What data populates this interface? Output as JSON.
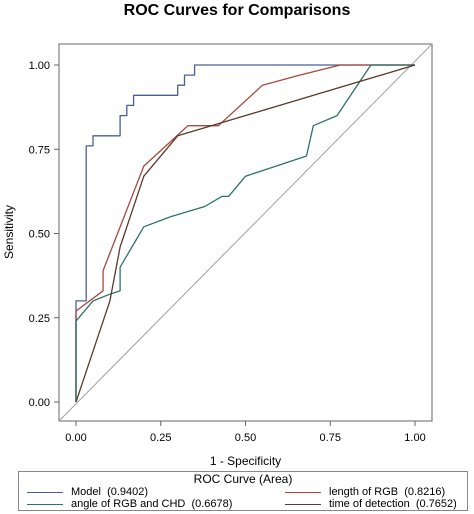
{
  "chart_data": {
    "type": "line",
    "title": "ROC Curves for Comparisons",
    "xlabel": "1 - Specificity",
    "ylabel": "Sensitivity",
    "xlim": [
      0,
      1
    ],
    "ylim": [
      0,
      1
    ],
    "xticks": [
      "0.00",
      "0.25",
      "0.50",
      "0.75",
      "1.00"
    ],
    "yticks": [
      "0.00",
      "0.25",
      "0.50",
      "0.75",
      "1.00"
    ],
    "grid": false,
    "legend_title": "ROC Curve (Area)",
    "legend_position": "bottom",
    "reference_line": {
      "x": [
        0,
        1
      ],
      "y": [
        0,
        1
      ],
      "color": "#a0a0a0"
    },
    "series": [
      {
        "name": "Model",
        "area_label": "(0.9402)",
        "color": "#4a5f9a",
        "x": [
          0,
          0,
          0.03,
          0.03,
          0.05,
          0.05,
          0.13,
          0.13,
          0.15,
          0.15,
          0.17,
          0.17,
          0.3,
          0.3,
          0.32,
          0.32,
          0.35,
          0.35,
          1.0
        ],
        "y": [
          0,
          0.3,
          0.3,
          0.76,
          0.76,
          0.79,
          0.79,
          0.85,
          0.85,
          0.88,
          0.88,
          0.91,
          0.91,
          0.94,
          0.94,
          0.97,
          0.97,
          1.0,
          1.0
        ]
      },
      {
        "name": "length of RGB",
        "area_label": "(0.8216)",
        "color": "#a8483c",
        "x": [
          0,
          0,
          0.08,
          0.08,
          0.2,
          0.33,
          0.42,
          0.55,
          0.66,
          0.78,
          1.0
        ],
        "y": [
          0,
          0.27,
          0.33,
          0.39,
          0.7,
          0.82,
          0.82,
          0.94,
          0.97,
          1.0,
          1.0
        ]
      },
      {
        "name": "angle of RGB and CHD",
        "area_label": "(0.6678)",
        "color": "#2f7268",
        "x": [
          0,
          0,
          0.05,
          0.1,
          0.13,
          0.13,
          0.2,
          0.28,
          0.38,
          0.43,
          0.45,
          0.5,
          0.68,
          0.7,
          0.77,
          0.87,
          1.0
        ],
        "y": [
          0,
          0.24,
          0.3,
          0.32,
          0.33,
          0.4,
          0.52,
          0.55,
          0.58,
          0.61,
          0.61,
          0.67,
          0.73,
          0.82,
          0.85,
          1.0,
          1.0
        ]
      },
      {
        "name": "time of detection",
        "area_label": "(0.7652)",
        "color": "#5a3a2a",
        "x": [
          0,
          0.1,
          0.13,
          0.2,
          0.3,
          1.0
        ],
        "y": [
          0,
          0.3,
          0.46,
          0.67,
          0.79,
          1.0
        ]
      }
    ]
  }
}
